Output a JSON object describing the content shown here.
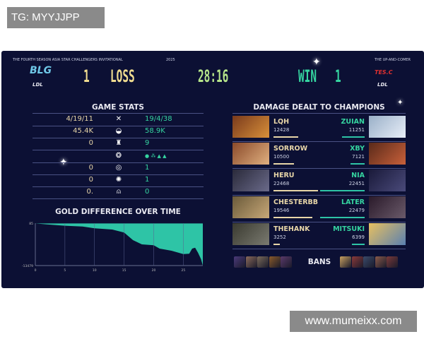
{
  "watermark_top": "TG: MYYJJPP",
  "watermark_bottom": "www.mumeixx.com",
  "header": {
    "event": "THE FOURTH SEASON ASIA STAR CHALLENGERS INVITATIONAL",
    "year": "2025",
    "right_caption": "THE UP-AND-COMER",
    "left_team": {
      "logo": "BLG",
      "league": "LDL",
      "score": "1",
      "result": "LOSS"
    },
    "right_team": {
      "logo": "TES.C",
      "league": "LDL",
      "score": "1",
      "result": "WIN"
    },
    "duration": "28:16"
  },
  "colors": {
    "panel": "#0c1034",
    "left": "#e8d6a8",
    "right": "#2ec4a6",
    "loss": "#f0dc90",
    "win": "#35d4a0",
    "timer": "#b6e58a"
  },
  "game_stats": {
    "title": "GAME STATS",
    "rows": [
      {
        "icon": "kda-swords-icon",
        "left": "4/19/11",
        "right": "19/4/38"
      },
      {
        "icon": "gold-icon",
        "left": "45.4K",
        "right": "58.9K"
      },
      {
        "icon": "tower-icon",
        "left": "0",
        "right": "9"
      },
      {
        "icon": "dragon-icon",
        "left": "",
        "right": "● ⁂ ▲ ▲"
      },
      {
        "icon": "herald-icon",
        "left": "0",
        "right": "1"
      },
      {
        "icon": "baron-icon",
        "left": "0",
        "right": "1"
      },
      {
        "icon": "inhibitor-icon",
        "left": "0.",
        "right": "0"
      }
    ]
  },
  "gold_chart": {
    "title": "GOLD DIFFERENCE OVER TIME",
    "chart_data": {
      "type": "area",
      "ylim": [
        -13479,
        85
      ],
      "y_tick_labels": [
        "85",
        "-13479"
      ],
      "x_ticks": [
        0,
        5,
        10,
        15,
        20,
        25
      ],
      "xlim": [
        0,
        28.3
      ],
      "x": [
        0,
        2,
        5,
        8,
        10,
        13,
        15,
        16.5,
        18,
        20,
        21,
        23,
        25,
        26,
        26.5,
        27,
        27.5,
        28,
        28.3
      ],
      "y": [
        0,
        -322,
        -729,
        -1000,
        -1543,
        -1950,
        -2899,
        -5341,
        -6697,
        -6968,
        -8053,
        -8732,
        -9817,
        -9681,
        -8053,
        -7782,
        -9410,
        -11444,
        -13479
      ],
      "fill_color": "#2ec4a6"
    }
  },
  "damage": {
    "title": "DAMAGE DEALT TO CHAMPIONS",
    "max": 22479,
    "rows": [
      {
        "left_name": "LQH",
        "left_dmg": "12428",
        "left_val": 12428,
        "right_name": "ZUIAN",
        "right_dmg": "11251",
        "right_val": 11251
      },
      {
        "left_name": "SORROW",
        "left_dmg": "10500",
        "left_val": 10500,
        "right_name": "XBY",
        "right_dmg": "7121",
        "right_val": 7121
      },
      {
        "left_name": "HERU",
        "left_dmg": "22468",
        "left_val": 22468,
        "right_name": "NIA",
        "right_dmg": "22451",
        "right_val": 22451
      },
      {
        "left_name": "CHESTERBB",
        "left_dmg": "19546",
        "left_val": 19546,
        "right_name": "LATER",
        "right_dmg": "22479",
        "right_val": 22479
      },
      {
        "left_name": "THEHANK",
        "left_dmg": "3252",
        "left_val": 3252,
        "right_name": "MITSUKI",
        "right_dmg": "6399",
        "right_val": 6399
      }
    ]
  },
  "bans_label": "BANS"
}
